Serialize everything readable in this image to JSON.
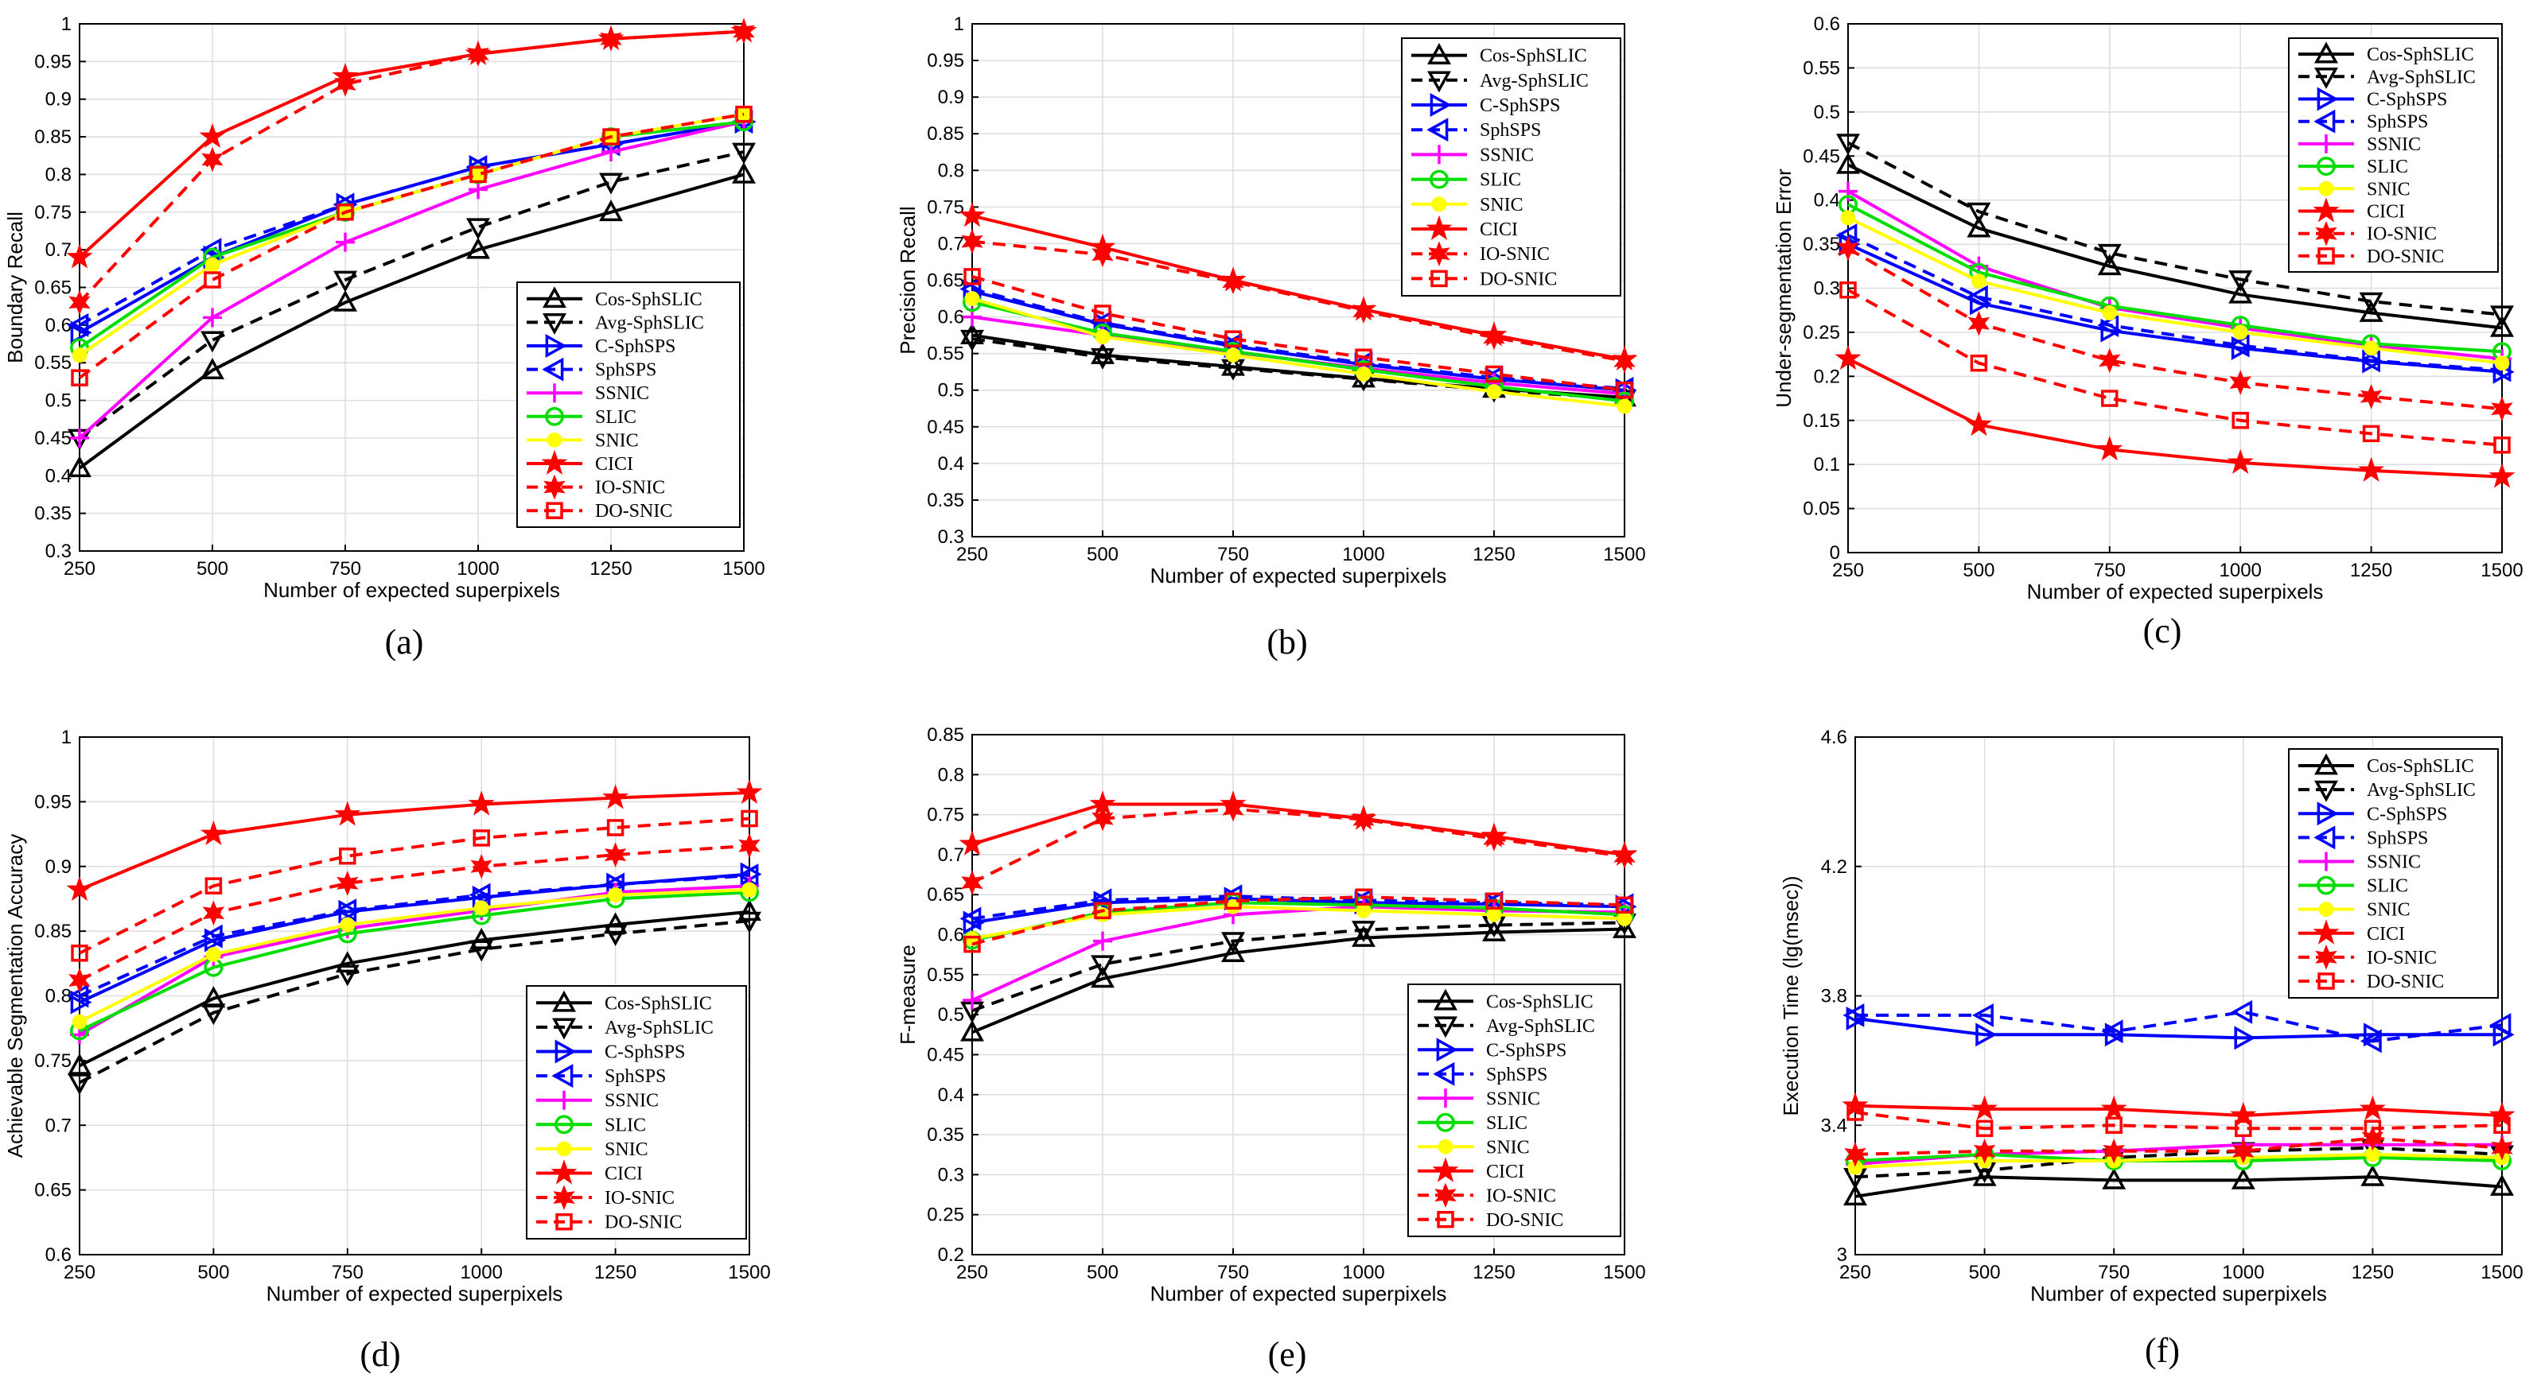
{
  "series_styles": [
    {
      "name": "Cos-SphSLIC",
      "color": "#000000",
      "dash": false,
      "marker": "tri-up"
    },
    {
      "name": "Avg-SphSLIC",
      "color": "#000000",
      "dash": true,
      "marker": "tri-down"
    },
    {
      "name": "C-SphSPS",
      "color": "#0000ff",
      "dash": false,
      "marker": "tri-right"
    },
    {
      "name": "SphSPS",
      "color": "#0000ff",
      "dash": true,
      "marker": "tri-left"
    },
    {
      "name": "SSNIC",
      "color": "#ff00ff",
      "dash": false,
      "marker": "plus"
    },
    {
      "name": "SLIC",
      "color": "#00dd00",
      "dash": false,
      "marker": "circle"
    },
    {
      "name": "SNIC",
      "color": "#ffff00",
      "dash": false,
      "marker": "dot"
    },
    {
      "name": "CICI",
      "color": "#ff0000",
      "dash": false,
      "marker": "star"
    },
    {
      "name": "IO-SNIC",
      "color": "#ff0000",
      "dash": true,
      "marker": "hexstar"
    },
    {
      "name": "DO-SNIC",
      "color": "#ff0000",
      "dash": true,
      "marker": "square"
    }
  ],
  "chart_data": [
    {
      "id": "a",
      "caption": "(a)",
      "type": "line",
      "xlabel": "Number of expected superpixels",
      "ylabel": "Boundary Recall",
      "x": [
        250,
        500,
        750,
        1000,
        1250,
        1500
      ],
      "xticks": [
        "250",
        "500",
        "750",
        "1000",
        "1250",
        "1500"
      ],
      "ylim": [
        0.3,
        1
      ],
      "yticks": [
        "0.3",
        "0.35",
        "0.4",
        "0.45",
        "0.5",
        "0.55",
        "0.6",
        "0.65",
        "0.7",
        "0.75",
        "0.8",
        "0.85",
        "0.9",
        "0.95",
        "1"
      ],
      "legend": "bottom-right",
      "grid": true,
      "series": [
        {
          "name": "Cos-SphSLIC",
          "values": [
            0.41,
            0.54,
            0.63,
            0.7,
            0.75,
            0.8
          ]
        },
        {
          "name": "Avg-SphSLIC",
          "values": [
            0.45,
            0.58,
            0.66,
            0.73,
            0.79,
            0.83
          ]
        },
        {
          "name": "C-SphSPS",
          "values": [
            0.59,
            0.69,
            0.76,
            0.81,
            0.84,
            0.87
          ]
        },
        {
          "name": "SphSPS",
          "values": [
            0.6,
            0.7,
            0.76,
            0.81,
            0.84,
            0.87
          ]
        },
        {
          "name": "SSNIC",
          "values": [
            0.45,
            0.61,
            0.71,
            0.78,
            0.83,
            0.87
          ]
        },
        {
          "name": "SLIC",
          "values": [
            0.57,
            0.69,
            0.75,
            0.8,
            0.85,
            0.87
          ]
        },
        {
          "name": "SNIC",
          "values": [
            0.56,
            0.68,
            0.75,
            0.8,
            0.85,
            0.88
          ]
        },
        {
          "name": "CICI",
          "values": [
            0.69,
            0.85,
            0.93,
            0.96,
            0.98,
            0.99
          ]
        },
        {
          "name": "IO-SNIC",
          "values": [
            0.63,
            0.82,
            0.92,
            0.96,
            0.98,
            0.99
          ]
        },
        {
          "name": "DO-SNIC",
          "values": [
            0.53,
            0.66,
            0.75,
            0.8,
            0.85,
            0.88
          ]
        }
      ]
    },
    {
      "id": "b",
      "caption": "(b)",
      "type": "line",
      "xlabel": "Number of expected superpixels",
      "ylabel": "Precision Recall",
      "x": [
        250,
        500,
        750,
        1000,
        1250,
        1500
      ],
      "xticks": [
        "250",
        "500",
        "750",
        "1000",
        "1250",
        "1500"
      ],
      "ylim": [
        0.3,
        1
      ],
      "yticks": [
        "0.3",
        "0.35",
        "0.4",
        "0.45",
        "0.5",
        "0.55",
        "0.6",
        "0.65",
        "0.7",
        "0.75",
        "0.8",
        "0.85",
        "0.9",
        "0.95",
        "1"
      ],
      "legend": "top-right",
      "grid": true,
      "series": [
        {
          "name": "Cos-SphSLIC",
          "values": [
            0.575,
            0.548,
            0.532,
            0.516,
            0.502,
            0.49
          ]
        },
        {
          "name": "Avg-SphSLIC",
          "values": [
            0.57,
            0.545,
            0.53,
            0.515,
            0.5,
            0.488
          ]
        },
        {
          "name": "C-SphSPS",
          "values": [
            0.635,
            0.59,
            0.56,
            0.535,
            0.515,
            0.5
          ]
        },
        {
          "name": "SphSPS",
          "values": [
            0.638,
            0.592,
            0.562,
            0.537,
            0.517,
            0.502
          ]
        },
        {
          "name": "SSNIC",
          "values": [
            0.6,
            0.575,
            0.552,
            0.53,
            0.51,
            0.495
          ]
        },
        {
          "name": "SLIC",
          "values": [
            0.62,
            0.578,
            0.553,
            0.528,
            0.505,
            0.485
          ]
        },
        {
          "name": "SNIC",
          "values": [
            0.625,
            0.573,
            0.548,
            0.522,
            0.498,
            0.478
          ]
        },
        {
          "name": "CICI",
          "values": [
            0.738,
            0.695,
            0.65,
            0.61,
            0.575,
            0.542
          ]
        },
        {
          "name": "IO-SNIC",
          "values": [
            0.703,
            0.685,
            0.648,
            0.608,
            0.572,
            0.54
          ]
        },
        {
          "name": "DO-SNIC",
          "values": [
            0.655,
            0.605,
            0.57,
            0.545,
            0.522,
            0.5
          ]
        }
      ]
    },
    {
      "id": "c",
      "caption": "(c)",
      "type": "line",
      "xlabel": "Number of expected superpixels",
      "ylabel": "Under-segmentation Error",
      "x": [
        250,
        500,
        750,
        1000,
        1250,
        1500
      ],
      "xticks": [
        "250",
        "500",
        "750",
        "1000",
        "1250",
        "1500"
      ],
      "ylim": [
        0,
        0.6
      ],
      "yticks": [
        "0",
        "0.05",
        "0.1",
        "0.15",
        "0.2",
        "0.25",
        "0.3",
        "0.35",
        "0.4",
        "0.45",
        "0.5",
        "0.55",
        "0.6"
      ],
      "legend": "top-right",
      "grid": true,
      "series": [
        {
          "name": "Cos-SphSLIC",
          "values": [
            0.44,
            0.368,
            0.325,
            0.293,
            0.272,
            0.255
          ]
        },
        {
          "name": "Avg-SphSLIC",
          "values": [
            0.465,
            0.387,
            0.34,
            0.31,
            0.285,
            0.27
          ]
        },
        {
          "name": "C-SphSPS",
          "values": [
            0.35,
            0.283,
            0.252,
            0.232,
            0.217,
            0.205
          ]
        },
        {
          "name": "SphSPS",
          "values": [
            0.36,
            0.29,
            0.258,
            0.235,
            0.218,
            0.207
          ]
        },
        {
          "name": "SSNIC",
          "values": [
            0.41,
            0.325,
            0.278,
            0.255,
            0.235,
            0.22
          ]
        },
        {
          "name": "SLIC",
          "values": [
            0.395,
            0.318,
            0.28,
            0.258,
            0.237,
            0.228
          ]
        },
        {
          "name": "SNIC",
          "values": [
            0.38,
            0.308,
            0.272,
            0.25,
            0.232,
            0.215
          ]
        },
        {
          "name": "CICI",
          "values": [
            0.22,
            0.145,
            0.117,
            0.102,
            0.093,
            0.086
          ]
        },
        {
          "name": "IO-SNIC",
          "values": [
            0.345,
            0.26,
            0.218,
            0.193,
            0.177,
            0.163
          ]
        },
        {
          "name": "DO-SNIC",
          "values": [
            0.298,
            0.215,
            0.175,
            0.15,
            0.135,
            0.122
          ]
        }
      ]
    },
    {
      "id": "d",
      "caption": "(d)",
      "type": "line",
      "xlabel": "Number of expected superpixels",
      "ylabel": "Achievable Segmentation Accuracy",
      "x": [
        250,
        500,
        750,
        1000,
        1250,
        1500
      ],
      "xticks": [
        "250",
        "500",
        "750",
        "1000",
        "1250",
        "1500"
      ],
      "ylim": [
        0.6,
        1
      ],
      "yticks": [
        "0.6",
        "0.65",
        "0.7",
        "0.75",
        "0.8",
        "0.85",
        "0.9",
        "0.95",
        "1"
      ],
      "legend": "bottom-right",
      "grid": true,
      "series": [
        {
          "name": "Cos-SphSLIC",
          "values": [
            0.746,
            0.798,
            0.825,
            0.843,
            0.855,
            0.865
          ]
        },
        {
          "name": "Avg-SphSLIC",
          "values": [
            0.733,
            0.787,
            0.817,
            0.836,
            0.848,
            0.858
          ]
        },
        {
          "name": "C-SphSPS",
          "values": [
            0.795,
            0.843,
            0.865,
            0.876,
            0.886,
            0.894
          ]
        },
        {
          "name": "SphSPS",
          "values": [
            0.8,
            0.846,
            0.866,
            0.878,
            0.886,
            0.893
          ]
        },
        {
          "name": "SSNIC",
          "values": [
            0.77,
            0.83,
            0.852,
            0.866,
            0.88,
            0.885
          ]
        },
        {
          "name": "SLIC",
          "values": [
            0.773,
            0.822,
            0.848,
            0.862,
            0.875,
            0.88
          ]
        },
        {
          "name": "SNIC",
          "values": [
            0.78,
            0.832,
            0.855,
            0.868,
            0.878,
            0.882
          ]
        },
        {
          "name": "CICI",
          "values": [
            0.882,
            0.925,
            0.94,
            0.948,
            0.953,
            0.957
          ]
        },
        {
          "name": "IO-SNIC",
          "values": [
            0.812,
            0.864,
            0.887,
            0.9,
            0.909,
            0.916
          ]
        },
        {
          "name": "DO-SNIC",
          "values": [
            0.833,
            0.885,
            0.908,
            0.922,
            0.93,
            0.937
          ]
        }
      ]
    },
    {
      "id": "e",
      "caption": "(e)",
      "type": "line",
      "xlabel": "Number of expected superpixels",
      "ylabel": "F-measure",
      "x": [
        250,
        500,
        750,
        1000,
        1250,
        1500
      ],
      "xticks": [
        "250",
        "500",
        "750",
        "1000",
        "1250",
        "1500"
      ],
      "ylim": [
        0.2,
        0.85
      ],
      "yticks": [
        "0.2",
        "0.25",
        "0.3",
        "0.35",
        "0.4",
        "0.45",
        "0.5",
        "0.55",
        "0.6",
        "0.65",
        "0.7",
        "0.75",
        "0.8",
        "0.85"
      ],
      "legend": "bottom-right",
      "grid": true,
      "series": [
        {
          "name": "Cos-SphSLIC",
          "values": [
            0.478,
            0.545,
            0.577,
            0.596,
            0.603,
            0.607
          ]
        },
        {
          "name": "Avg-SphSLIC",
          "values": [
            0.505,
            0.563,
            0.592,
            0.606,
            0.612,
            0.615
          ]
        },
        {
          "name": "C-SphSPS",
          "values": [
            0.615,
            0.64,
            0.645,
            0.64,
            0.638,
            0.635
          ]
        },
        {
          "name": "SphSPS",
          "values": [
            0.62,
            0.643,
            0.648,
            0.643,
            0.64,
            0.637
          ]
        },
        {
          "name": "SSNIC",
          "values": [
            0.518,
            0.592,
            0.625,
            0.635,
            0.63,
            0.628
          ]
        },
        {
          "name": "SLIC",
          "values": [
            0.593,
            0.628,
            0.64,
            0.637,
            0.633,
            0.625
          ]
        },
        {
          "name": "SNIC",
          "values": [
            0.595,
            0.625,
            0.635,
            0.63,
            0.625,
            0.62
          ]
        },
        {
          "name": "CICI",
          "values": [
            0.713,
            0.763,
            0.763,
            0.745,
            0.723,
            0.7
          ]
        },
        {
          "name": "IO-SNIC",
          "values": [
            0.665,
            0.745,
            0.757,
            0.744,
            0.72,
            0.698
          ]
        },
        {
          "name": "DO-SNIC",
          "values": [
            0.588,
            0.63,
            0.642,
            0.647,
            0.642,
            0.637
          ]
        }
      ]
    },
    {
      "id": "f",
      "caption": "(f)",
      "type": "line",
      "xlabel": "Number of expected superpixels",
      "ylabel": "Execution Time (lg(msec))",
      "x": [
        250,
        500,
        750,
        1000,
        1250,
        1500
      ],
      "xticks": [
        "250",
        "500",
        "750",
        "1000",
        "1250",
        "1500"
      ],
      "ylim": [
        3,
        4.6
      ],
      "yticks": [
        "3",
        "3.4",
        "3.8",
        "4.2",
        "4.6"
      ],
      "legend": "top-right",
      "grid": true,
      "series": [
        {
          "name": "Cos-SphSLIC",
          "values": [
            3.18,
            3.24,
            3.23,
            3.23,
            3.24,
            3.21
          ]
        },
        {
          "name": "Avg-SphSLIC",
          "values": [
            3.24,
            3.26,
            3.3,
            3.32,
            3.33,
            3.31
          ]
        },
        {
          "name": "C-SphSPS",
          "values": [
            3.73,
            3.68,
            3.68,
            3.67,
            3.68,
            3.68
          ]
        },
        {
          "name": "SphSPS",
          "values": [
            3.74,
            3.74,
            3.69,
            3.75,
            3.66,
            3.71
          ]
        },
        {
          "name": "SSNIC",
          "values": [
            3.28,
            3.31,
            3.32,
            3.34,
            3.34,
            3.34
          ]
        },
        {
          "name": "SLIC",
          "values": [
            3.29,
            3.31,
            3.29,
            3.29,
            3.3,
            3.29
          ]
        },
        {
          "name": "SNIC",
          "values": [
            3.27,
            3.29,
            3.29,
            3.3,
            3.31,
            3.3
          ]
        },
        {
          "name": "CICI",
          "values": [
            3.46,
            3.45,
            3.45,
            3.43,
            3.45,
            3.43
          ]
        },
        {
          "name": "IO-SNIC",
          "values": [
            3.31,
            3.32,
            3.32,
            3.32,
            3.36,
            3.33
          ]
        },
        {
          "name": "DO-SNIC",
          "values": [
            3.44,
            3.39,
            3.4,
            3.39,
            3.39,
            3.4
          ]
        }
      ]
    }
  ]
}
